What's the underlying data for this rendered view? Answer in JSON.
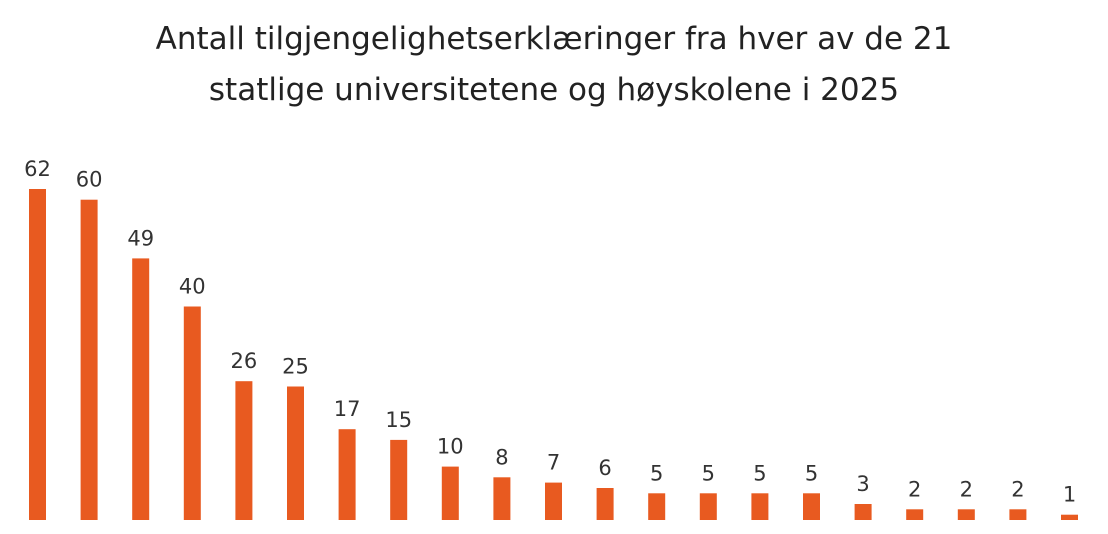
{
  "chart_data": {
    "type": "bar",
    "title_lines": [
      "Antall tilgjengelighetserklæringer fra hver av de 21",
      "statlige universitetene og høyskolene i 2025"
    ],
    "values": [
      62,
      60,
      49,
      40,
      26,
      25,
      17,
      15,
      10,
      8,
      7,
      6,
      5,
      5,
      5,
      5,
      3,
      2,
      2,
      2,
      1
    ],
    "value_labels": [
      "62",
      "60",
      "49",
      "40",
      "26",
      "25",
      "17",
      "15",
      "10",
      "8",
      "7",
      "6",
      "5",
      "5",
      "5",
      "5",
      "3",
      "2",
      "2",
      "2",
      "1"
    ],
    "ylim": [
      0,
      62
    ],
    "bar_color": "#E85A20",
    "grid": false,
    "legend": "none"
  }
}
